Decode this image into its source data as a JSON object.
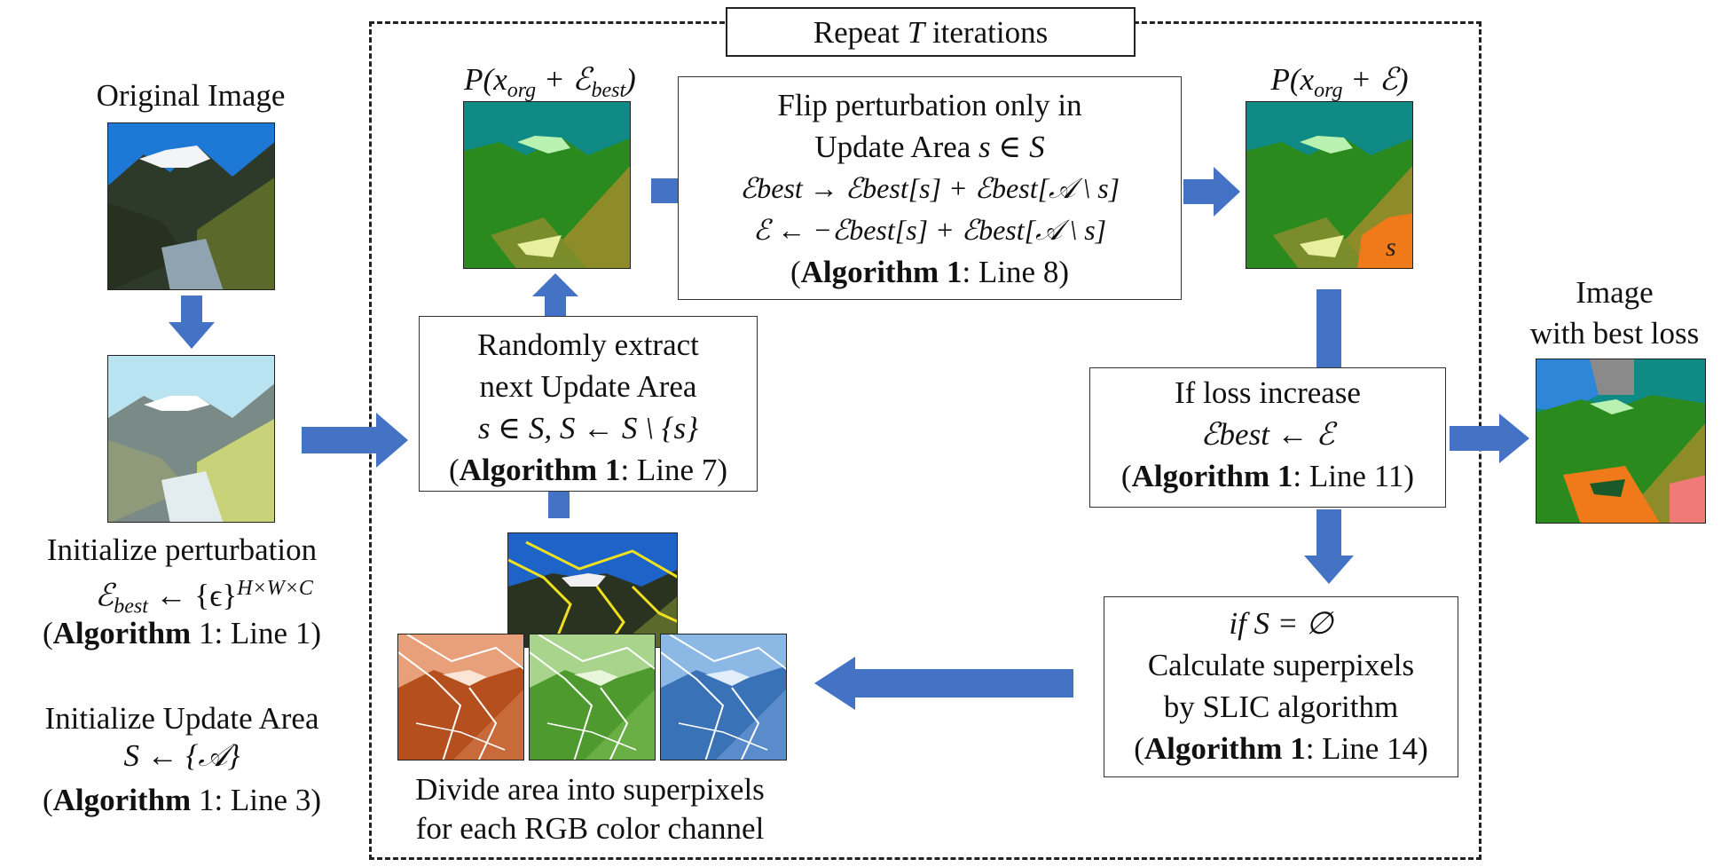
{
  "colors": {
    "arrow": "#4472c4",
    "frame": "#222222",
    "box_border": "#333333"
  },
  "loop": {
    "label_prefix": "Repeat",
    "label_var": "T",
    "label_suffix": "iterations"
  },
  "left": {
    "original_label": "Original Image",
    "init_perturbation": {
      "line1": "Initialize perturbation",
      "formula_lhs": "ℰ",
      "formula_lhs_sub": "best",
      "formula_rhs": " ← {ϵ}",
      "formula_sup": "H×W×C",
      "ref_bold": "Algorithm",
      "ref_rest": " 1: Line 1)"
    },
    "init_update": {
      "line1": "Initialize Update Area",
      "formula": "S ← {𝒜}",
      "ref_bold": "Algorithm",
      "ref_rest": " 1: Line 3)"
    }
  },
  "top_left_label": {
    "p": "P(x",
    "sub": "org",
    "plus": " + ℰ",
    "sub2": "best",
    "close": ")"
  },
  "top_right_label": {
    "p": "P(x",
    "sub": "org",
    "plus": " + ℰ)"
  },
  "flip_box": {
    "line1": "Flip perturbation only in",
    "line2": "Update Area",
    "line2_math": " s ∈ S",
    "line3": "ℰbest → ℰbest[s] + ℰbest[𝒜 \\ s]",
    "line4": "ℰ ← −ℰbest[s] + ℰbest[𝒜 \\ s]",
    "ref_bold": "Algorithm 1",
    "ref_rest": ": Line 8)"
  },
  "extract_box": {
    "line1": "Randomly extract",
    "line2": "next Update Area",
    "line3": "s ∈ S,    S ← S \\ {s}",
    "ref_bold": "Algorithm 1",
    "ref_rest": ": Line 7)"
  },
  "loss_box": {
    "line1": "If loss increase",
    "line2": "ℰbest ← ℰ",
    "ref_bold": "Algorithm 1",
    "ref_rest": ": Line 11)"
  },
  "slic_box": {
    "line1": "if S = ∅",
    "line2": "Calculate superpixels",
    "line3": "by SLIC algorithm",
    "ref_bold": "Algorithm 1",
    "ref_rest": ": Line 14)"
  },
  "superpixel_caption": {
    "line1": "Divide area into superpixels",
    "line2": "for each RGB color channel"
  },
  "best_label": {
    "line1": "Image",
    "line2": "with best loss"
  },
  "s_mark": "s"
}
